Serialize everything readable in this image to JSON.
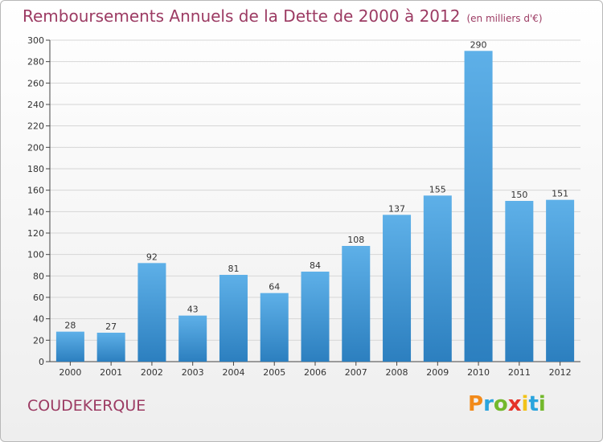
{
  "header": {
    "title": "Remboursements Annuels de la Dette de 2000 à 2012",
    "subtitle": "(en milliers d'€)"
  },
  "footer": {
    "place": "COUDEKERQUE",
    "brand": [
      "P",
      "r",
      "o",
      "x",
      "i",
      "t",
      "i"
    ],
    "brand_colors": [
      "#f28a1a",
      "#2aa4dd",
      "#73b82c",
      "#e5332a",
      "#f2c318",
      "#2aa4dd",
      "#73b82c"
    ]
  },
  "chart_data": {
    "type": "bar",
    "title": "Remboursements Annuels de la Dette de 2000 à 2012",
    "subtitle": "(en milliers d'€)",
    "categories": [
      "2000",
      "2001",
      "2002",
      "2003",
      "2004",
      "2005",
      "2006",
      "2007",
      "2008",
      "2009",
      "2010",
      "2011",
      "2012"
    ],
    "values": [
      28,
      27,
      92,
      43,
      81,
      64,
      84,
      108,
      137,
      155,
      290,
      150,
      151
    ],
    "ylim": [
      0,
      300
    ],
    "yticks": [
      0,
      20,
      40,
      60,
      80,
      100,
      120,
      140,
      160,
      180,
      200,
      220,
      240,
      260,
      280,
      300
    ],
    "grid": true,
    "bar_color": "#3f9ad9",
    "bar_color_dark": "#2c7fbf",
    "xlabel": "",
    "ylabel": ""
  }
}
